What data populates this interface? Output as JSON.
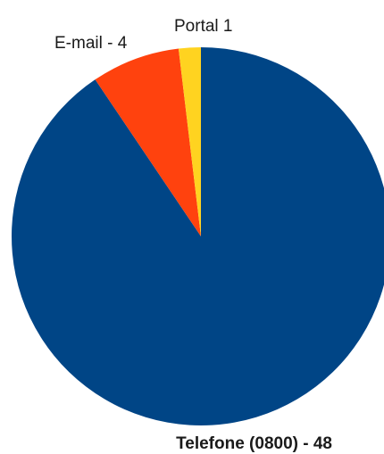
{
  "chart_data": {
    "type": "pie",
    "title": "",
    "slices": [
      {
        "label": "Telefone (0800) - 48",
        "value": 48,
        "color": "#004586",
        "bold": true
      },
      {
        "label": "E-mail - 4",
        "value": 4,
        "color": "#ff420e",
        "bold": false
      },
      {
        "label": "Portal  1",
        "value": 1,
        "color": "#ffd320",
        "bold": false
      }
    ],
    "start": "12 o'clock",
    "direction": "clockwise",
    "legend": "none"
  }
}
